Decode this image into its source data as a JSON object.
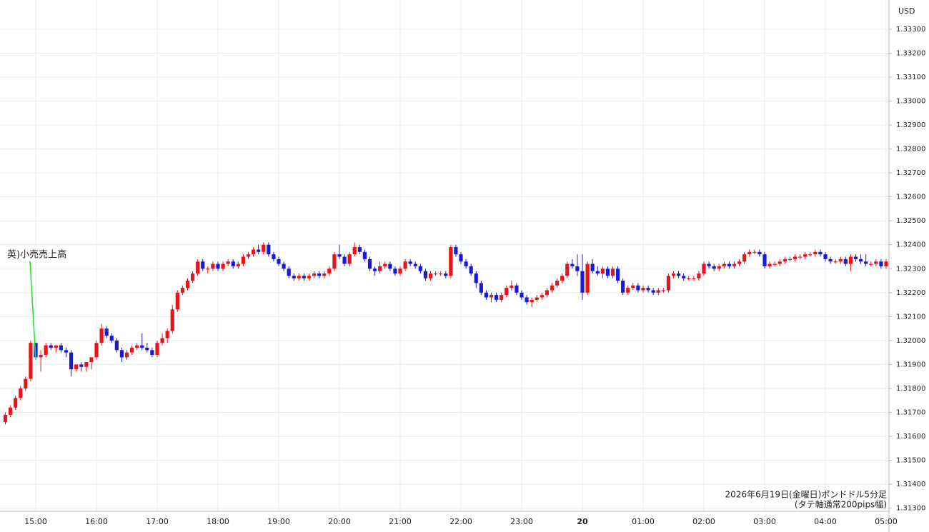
{
  "chart_data": {
    "type": "candlestick",
    "annotation": "英)小売売上高",
    "notes": [
      "2026年6月19日(金曜日)ポンドドル5分足",
      "(タテ軸通常200pips幅)"
    ],
    "y_axis_label": "USD",
    "up_color": "#e8141c",
    "down_color": "#1a1ad6",
    "annotation_color": "#2ee02e",
    "grid": true,
    "ylim": [
      1.3129,
      1.33422
    ],
    "yticks": [
      {
        "value": 1.313,
        "label": "1.31300"
      },
      {
        "value": 1.314,
        "label": "1.31400"
      },
      {
        "value": 1.315,
        "label": "1.31500"
      },
      {
        "value": 1.316,
        "label": "1.31600"
      },
      {
        "value": 1.317,
        "label": "1.31700"
      },
      {
        "value": 1.318,
        "label": "1.31800"
      },
      {
        "value": 1.319,
        "label": "1.31900"
      },
      {
        "value": 1.32,
        "label": "1.32000"
      },
      {
        "value": 1.321,
        "label": "1.32100"
      },
      {
        "value": 1.322,
        "label": "1.32200"
      },
      {
        "value": 1.323,
        "label": "1.32300"
      },
      {
        "value": 1.324,
        "label": "1.32400"
      },
      {
        "value": 1.325,
        "label": "1.32500"
      },
      {
        "value": 1.326,
        "label": "1.32600"
      },
      {
        "value": 1.327,
        "label": "1.32700"
      },
      {
        "value": 1.328,
        "label": "1.32800"
      },
      {
        "value": 1.329,
        "label": "1.32900"
      },
      {
        "value": 1.33,
        "label": "1.33000"
      },
      {
        "value": 1.331,
        "label": "1.33100"
      },
      {
        "value": 1.332,
        "label": "1.33200"
      },
      {
        "value": 1.333,
        "label": "1.33300"
      }
    ],
    "categories": [
      null,
      null,
      null,
      null,
      null,
      null,
      "15:00",
      null,
      null,
      null,
      null,
      null,
      null,
      null,
      null,
      null,
      null,
      null,
      "16:00",
      null,
      null,
      null,
      null,
      null,
      null,
      null,
      null,
      null,
      null,
      null,
      "17:00",
      null,
      null,
      null,
      null,
      null,
      null,
      null,
      null,
      null,
      null,
      null,
      "18:00",
      null,
      null,
      null,
      null,
      null,
      null,
      null,
      null,
      null,
      null,
      null,
      "19:00",
      null,
      null,
      null,
      null,
      null,
      null,
      null,
      null,
      null,
      null,
      null,
      "20:00",
      null,
      null,
      null,
      null,
      null,
      null,
      null,
      null,
      null,
      null,
      null,
      "21:00",
      null,
      null,
      null,
      null,
      null,
      null,
      null,
      null,
      null,
      null,
      null,
      "22:00",
      null,
      null,
      null,
      null,
      null,
      null,
      null,
      null,
      null,
      null,
      null,
      "23:00",
      null,
      null,
      null,
      null,
      null,
      null,
      null,
      null,
      null,
      null,
      null,
      "20",
      null,
      null,
      null,
      null,
      null,
      null,
      null,
      null,
      null,
      null,
      null,
      "01:00",
      null,
      null,
      null,
      null,
      null,
      null,
      null,
      null,
      null,
      null,
      null,
      "02:00",
      null,
      null,
      null,
      null,
      null,
      null,
      null,
      null,
      null,
      null,
      null,
      "03:00",
      null,
      null,
      null,
      null,
      null,
      null,
      null,
      null,
      null,
      null,
      null,
      "04:00",
      null,
      null,
      null,
      null,
      null,
      null,
      null,
      null,
      null,
      null,
      null,
      "05:00"
    ],
    "ohlc": [
      [
        1.3166,
        1.317,
        1.3165,
        1.3169
      ],
      [
        1.3169,
        1.3173,
        1.3168,
        1.3172
      ],
      [
        1.3172,
        1.3177,
        1.3171,
        1.3176
      ],
      [
        1.3176,
        1.3181,
        1.3175,
        1.318
      ],
      [
        1.318,
        1.3185,
        1.3179,
        1.3184
      ],
      [
        1.3184,
        1.32,
        1.3183,
        1.3199
      ],
      [
        1.3199,
        1.3199,
        1.3192,
        1.3193
      ],
      [
        1.3193,
        1.3196,
        1.3187,
        1.3194
      ],
      [
        1.3194,
        1.3199,
        1.3193,
        1.3198
      ],
      [
        1.3198,
        1.3199,
        1.3196,
        1.3197
      ],
      [
        1.3197,
        1.3198,
        1.3195,
        1.3198
      ],
      [
        1.3198,
        1.3199,
        1.3195,
        1.3196
      ],
      [
        1.3196,
        1.3197,
        1.3193,
        1.3195
      ],
      [
        1.3195,
        1.3196,
        1.3185,
        1.3188
      ],
      [
        1.3188,
        1.319,
        1.3187,
        1.319
      ],
      [
        1.319,
        1.3191,
        1.3187,
        1.3189
      ],
      [
        1.3189,
        1.3191,
        1.3187,
        1.3191
      ],
      [
        1.3191,
        1.3193,
        1.3188,
        1.3193
      ],
      [
        1.3193,
        1.32,
        1.3192,
        1.3199
      ],
      [
        1.3199,
        1.3207,
        1.3198,
        1.3205
      ],
      [
        1.3205,
        1.3206,
        1.3201,
        1.3202
      ],
      [
        1.3202,
        1.3203,
        1.3199,
        1.32
      ],
      [
        1.32,
        1.3201,
        1.3195,
        1.3196
      ],
      [
        1.3196,
        1.3197,
        1.3191,
        1.3193
      ],
      [
        1.3193,
        1.3196,
        1.3192,
        1.3195
      ],
      [
        1.3195,
        1.3198,
        1.3194,
        1.3197
      ],
      [
        1.3197,
        1.3199,
        1.3196,
        1.3198
      ],
      [
        1.3198,
        1.3203,
        1.3196,
        1.3197
      ],
      [
        1.3197,
        1.3199,
        1.3195,
        1.3196
      ],
      [
        1.3196,
        1.3197,
        1.3193,
        1.3194
      ],
      [
        1.3194,
        1.32,
        1.3193,
        1.3199
      ],
      [
        1.3199,
        1.3203,
        1.3198,
        1.3201
      ],
      [
        1.3201,
        1.3205,
        1.3199,
        1.3204
      ],
      [
        1.3204,
        1.3215,
        1.3203,
        1.3213
      ],
      [
        1.3213,
        1.3221,
        1.3212,
        1.322
      ],
      [
        1.322,
        1.3223,
        1.3219,
        1.3222
      ],
      [
        1.3222,
        1.3226,
        1.3221,
        1.3225
      ],
      [
        1.3225,
        1.3229,
        1.3224,
        1.3228
      ],
      [
        1.3228,
        1.3234,
        1.3227,
        1.3233
      ],
      [
        1.3233,
        1.3234,
        1.3229,
        1.323
      ],
      [
        1.323,
        1.3231,
        1.3228,
        1.323
      ],
      [
        1.323,
        1.3233,
        1.3229,
        1.3232
      ],
      [
        1.3232,
        1.3233,
        1.3229,
        1.323
      ],
      [
        1.323,
        1.3233,
        1.3229,
        1.3232
      ],
      [
        1.3232,
        1.3234,
        1.3231,
        1.3233
      ],
      [
        1.3233,
        1.3234,
        1.323,
        1.3231
      ],
      [
        1.3231,
        1.3233,
        1.323,
        1.3232
      ],
      [
        1.3232,
        1.3236,
        1.3231,
        1.3235
      ],
      [
        1.3235,
        1.3237,
        1.3234,
        1.3236
      ],
      [
        1.3236,
        1.3239,
        1.3235,
        1.3238
      ],
      [
        1.3238,
        1.324,
        1.3236,
        1.3237
      ],
      [
        1.3237,
        1.3241,
        1.3236,
        1.324
      ],
      [
        1.324,
        1.3241,
        1.3235,
        1.3236
      ],
      [
        1.3236,
        1.3237,
        1.3233,
        1.3234
      ],
      [
        1.3234,
        1.3235,
        1.3231,
        1.3232
      ],
      [
        1.3232,
        1.3233,
        1.3229,
        1.323
      ],
      [
        1.323,
        1.3231,
        1.3226,
        1.3227
      ],
      [
        1.3227,
        1.3228,
        1.3225,
        1.3226
      ],
      [
        1.3226,
        1.3228,
        1.3225,
        1.3227
      ],
      [
        1.3227,
        1.3228,
        1.3225,
        1.3226
      ],
      [
        1.3226,
        1.3228,
        1.3225,
        1.3227
      ],
      [
        1.3227,
        1.3229,
        1.3226,
        1.3228
      ],
      [
        1.3228,
        1.3229,
        1.3226,
        1.3227
      ],
      [
        1.3227,
        1.3229,
        1.3226,
        1.3228
      ],
      [
        1.3228,
        1.3231,
        1.3227,
        1.323
      ],
      [
        1.323,
        1.3237,
        1.3229,
        1.3236
      ],
      [
        1.3236,
        1.324,
        1.3234,
        1.3235
      ],
      [
        1.3235,
        1.3236,
        1.3231,
        1.3232
      ],
      [
        1.3232,
        1.3237,
        1.3231,
        1.3236
      ],
      [
        1.3236,
        1.3241,
        1.3235,
        1.3239
      ],
      [
        1.3239,
        1.324,
        1.3236,
        1.3237
      ],
      [
        1.3237,
        1.3238,
        1.3233,
        1.3234
      ],
      [
        1.3234,
        1.3235,
        1.3229,
        1.323
      ],
      [
        1.323,
        1.3231,
        1.3227,
        1.3229
      ],
      [
        1.3229,
        1.3233,
        1.3228,
        1.3231
      ],
      [
        1.3231,
        1.3233,
        1.323,
        1.3232
      ],
      [
        1.3232,
        1.3233,
        1.3229,
        1.323
      ],
      [
        1.323,
        1.3231,
        1.3227,
        1.3228
      ],
      [
        1.3228,
        1.3231,
        1.3227,
        1.323
      ],
      [
        1.323,
        1.3234,
        1.3229,
        1.3233
      ],
      [
        1.3233,
        1.3234,
        1.3231,
        1.3232
      ],
      [
        1.3232,
        1.3233,
        1.323,
        1.3231
      ],
      [
        1.3231,
        1.3232,
        1.3228,
        1.3229
      ],
      [
        1.3229,
        1.323,
        1.3225,
        1.3226
      ],
      [
        1.3226,
        1.3229,
        1.3225,
        1.3228
      ],
      [
        1.3228,
        1.3229,
        1.3227,
        1.3228
      ],
      [
        1.3228,
        1.3229,
        1.3227,
        1.3228
      ],
      [
        1.3228,
        1.3229,
        1.3226,
        1.3227
      ],
      [
        1.3227,
        1.324,
        1.3226,
        1.3239
      ],
      [
        1.3239,
        1.324,
        1.3235,
        1.3236
      ],
      [
        1.3236,
        1.3237,
        1.3232,
        1.3233
      ],
      [
        1.3233,
        1.3234,
        1.323,
        1.3231
      ],
      [
        1.3231,
        1.3232,
        1.3227,
        1.3228
      ],
      [
        1.3228,
        1.3229,
        1.3222,
        1.3224
      ],
      [
        1.3224,
        1.3225,
        1.3219,
        1.322
      ],
      [
        1.322,
        1.3221,
        1.3217,
        1.3218
      ],
      [
        1.3218,
        1.322,
        1.3216,
        1.3219
      ],
      [
        1.3219,
        1.322,
        1.3216,
        1.3217
      ],
      [
        1.3217,
        1.322,
        1.3216,
        1.3219
      ],
      [
        1.3219,
        1.3223,
        1.3218,
        1.3222
      ],
      [
        1.3222,
        1.3225,
        1.3221,
        1.3223
      ],
      [
        1.3223,
        1.3224,
        1.3219,
        1.322
      ],
      [
        1.322,
        1.3221,
        1.3217,
        1.3218
      ],
      [
        1.3218,
        1.3219,
        1.3215,
        1.3216
      ],
      [
        1.3216,
        1.3218,
        1.3214,
        1.3217
      ],
      [
        1.3217,
        1.3219,
        1.3216,
        1.3218
      ],
      [
        1.3218,
        1.322,
        1.3217,
        1.3219
      ],
      [
        1.3219,
        1.3222,
        1.3218,
        1.3221
      ],
      [
        1.3221,
        1.3224,
        1.322,
        1.3223
      ],
      [
        1.3223,
        1.3226,
        1.3222,
        1.3225
      ],
      [
        1.3225,
        1.3228,
        1.3224,
        1.3227
      ],
      [
        1.3227,
        1.3233,
        1.3226,
        1.3232
      ],
      [
        1.3232,
        1.3234,
        1.323,
        1.3231
      ],
      [
        1.3231,
        1.3236,
        1.3227,
        1.3229
      ],
      [
        1.3229,
        1.3236,
        1.3217,
        1.322
      ],
      [
        1.322,
        1.3233,
        1.3219,
        1.3232
      ],
      [
        1.3232,
        1.3234,
        1.3228,
        1.3229
      ],
      [
        1.3229,
        1.3231,
        1.3227,
        1.3228
      ],
      [
        1.3228,
        1.3231,
        1.3226,
        1.323
      ],
      [
        1.323,
        1.3231,
        1.3226,
        1.3227
      ],
      [
        1.3227,
        1.3231,
        1.3226,
        1.323
      ],
      [
        1.323,
        1.3231,
        1.3224,
        1.3225
      ],
      [
        1.3225,
        1.3226,
        1.3219,
        1.322
      ],
      [
        1.322,
        1.3223,
        1.3219,
        1.3222
      ],
      [
        1.3222,
        1.3224,
        1.3221,
        1.3223
      ],
      [
        1.3223,
        1.3224,
        1.322,
        1.3221
      ],
      [
        1.3221,
        1.3223,
        1.322,
        1.3222
      ],
      [
        1.3222,
        1.3223,
        1.322,
        1.3221
      ],
      [
        1.3221,
        1.3222,
        1.3219,
        1.322
      ],
      [
        1.322,
        1.3222,
        1.3219,
        1.3221
      ],
      [
        1.3221,
        1.3222,
        1.322,
        1.3221
      ],
      [
        1.3221,
        1.3228,
        1.322,
        1.3227
      ],
      [
        1.3227,
        1.3229,
        1.3226,
        1.3228
      ],
      [
        1.3228,
        1.3229,
        1.3226,
        1.3227
      ],
      [
        1.3227,
        1.3228,
        1.3225,
        1.3226
      ],
      [
        1.3226,
        1.3227,
        1.3225,
        1.3226
      ],
      [
        1.3226,
        1.3227,
        1.3225,
        1.3226
      ],
      [
        1.3226,
        1.3229,
        1.3225,
        1.3228
      ],
      [
        1.3228,
        1.3233,
        1.3227,
        1.3232
      ],
      [
        1.3232,
        1.3233,
        1.323,
        1.3231
      ],
      [
        1.3231,
        1.3232,
        1.3229,
        1.323
      ],
      [
        1.323,
        1.3232,
        1.3229,
        1.3231
      ],
      [
        1.3231,
        1.3233,
        1.323,
        1.3232
      ],
      [
        1.3232,
        1.3233,
        1.323,
        1.3231
      ],
      [
        1.3231,
        1.3233,
        1.323,
        1.3232
      ],
      [
        1.3232,
        1.3234,
        1.3231,
        1.3233
      ],
      [
        1.3233,
        1.3237,
        1.3232,
        1.3236
      ],
      [
        1.3236,
        1.3238,
        1.3235,
        1.3237
      ],
      [
        1.3237,
        1.3238,
        1.3236,
        1.3237
      ],
      [
        1.3237,
        1.3238,
        1.3235,
        1.3236
      ],
      [
        1.3236,
        1.3237,
        1.323,
        1.3231
      ],
      [
        1.3231,
        1.3233,
        1.323,
        1.3232
      ],
      [
        1.3232,
        1.3233,
        1.3231,
        1.3232
      ],
      [
        1.3232,
        1.3234,
        1.3231,
        1.3233
      ],
      [
        1.3233,
        1.3235,
        1.3232,
        1.3234
      ],
      [
        1.3234,
        1.3235,
        1.3233,
        1.3234
      ],
      [
        1.3234,
        1.3236,
        1.3233,
        1.3235
      ],
      [
        1.3235,
        1.3236,
        1.3234,
        1.3235
      ],
      [
        1.3235,
        1.3237,
        1.3234,
        1.3236
      ],
      [
        1.3236,
        1.3237,
        1.3235,
        1.3236
      ],
      [
        1.3236,
        1.3238,
        1.3235,
        1.3237
      ],
      [
        1.3237,
        1.3238,
        1.3235,
        1.3236
      ],
      [
        1.3236,
        1.3237,
        1.3233,
        1.3234
      ],
      [
        1.3234,
        1.3235,
        1.3232,
        1.3233
      ],
      [
        1.3233,
        1.3234,
        1.3232,
        1.3233
      ],
      [
        1.3233,
        1.3235,
        1.3232,
        1.3234
      ],
      [
        1.3234,
        1.3235,
        1.3231,
        1.3232
      ],
      [
        1.3232,
        1.3236,
        1.3229,
        1.3235
      ],
      [
        1.3235,
        1.3236,
        1.3233,
        1.3234
      ],
      [
        1.3234,
        1.3236,
        1.3232,
        1.3233
      ],
      [
        1.3233,
        1.3236,
        1.3231,
        1.3232
      ],
      [
        1.3232,
        1.3233,
        1.3231,
        1.3232
      ],
      [
        1.3232,
        1.3234,
        1.3231,
        1.3233
      ],
      [
        1.3233,
        1.3234,
        1.323,
        1.3231
      ],
      [
        1.3231,
        1.3234,
        1.323,
        1.3233
      ]
    ]
  }
}
